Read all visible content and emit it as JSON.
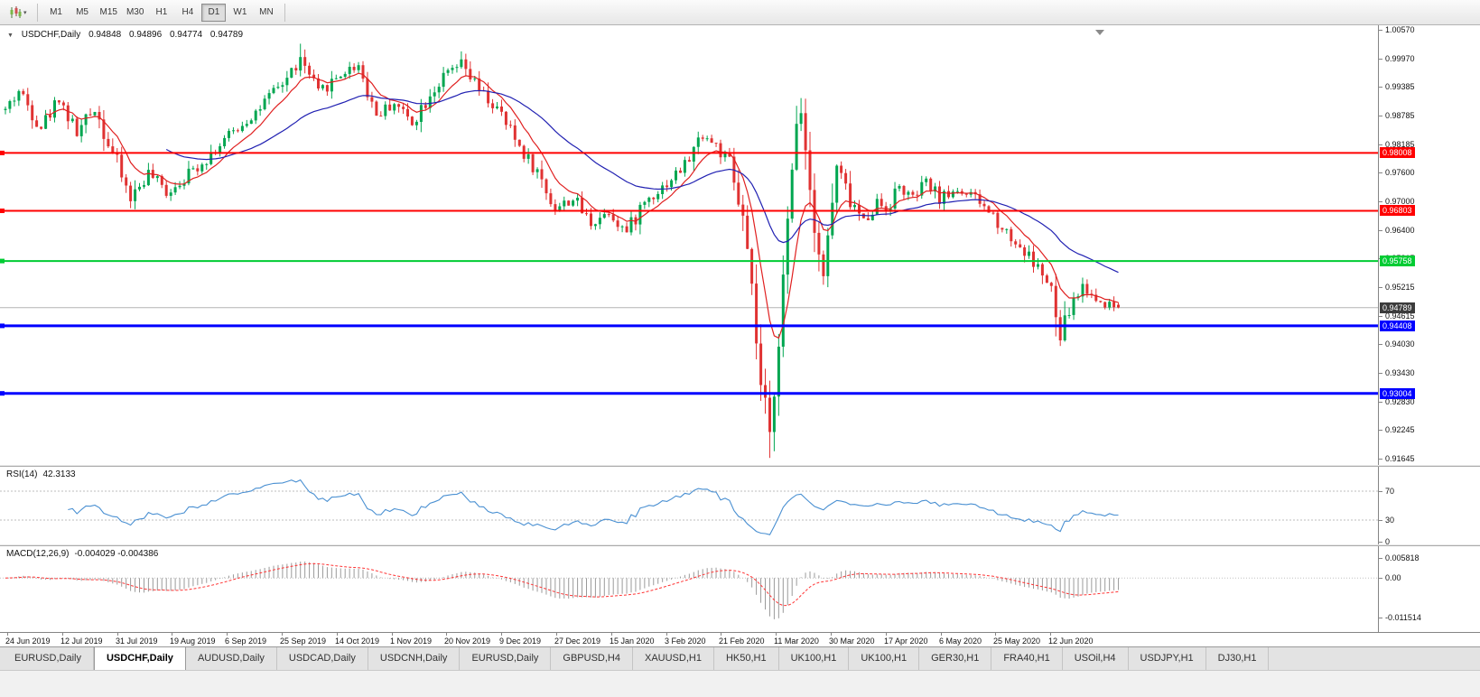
{
  "icons": {
    "collapse_arrow": "▼",
    "dropdown_caret": "▾"
  },
  "toolbar": {
    "timeframes": [
      "M1",
      "M5",
      "M15",
      "M30",
      "H1",
      "H4",
      "D1",
      "W1",
      "MN"
    ],
    "active_timeframe": "D1"
  },
  "chart": {
    "title": "USDCHF,Daily",
    "ohlc": {
      "open": "0.94848",
      "high": "0.94896",
      "low": "0.94774",
      "close": "0.94789"
    }
  },
  "chart_data": {
    "type": "candlestick",
    "symbol": "USDCHF",
    "timeframe": "Daily",
    "num_bars": 250,
    "ylim": [
      0.91645,
      1.0057
    ],
    "price_ticks": [
      "1.00570",
      "0.99970",
      "0.99385",
      "0.98785",
      "0.98185",
      "0.97600",
      "0.97000",
      "0.96400",
      "0.95815",
      "0.95215",
      "0.94615",
      "0.94030",
      "0.93430",
      "0.92830",
      "0.92245",
      "0.91645"
    ],
    "x_labels": [
      "24 Jun 2019",
      "12 Jul 2019",
      "31 Jul 2019",
      "19 Aug 2019",
      "6 Sep 2019",
      "25 Sep 2019",
      "14 Oct 2019",
      "1 Nov 2019",
      "20 Nov 2019",
      "9 Dec 2019",
      "27 Dec 2019",
      "15 Jan 2020",
      "3 Feb 2020",
      "21 Feb 2020",
      "11 Mar 2020",
      "30 Mar 2020",
      "17 Apr 2020",
      "6 May 2020",
      "25 May 2020",
      "12 Jun 2020"
    ],
    "close_path_anchors": [
      [
        0,
        0.989
      ],
      [
        3,
        0.993
      ],
      [
        8,
        0.9855
      ],
      [
        12,
        0.9915
      ],
      [
        16,
        0.984
      ],
      [
        20,
        0.9895
      ],
      [
        24,
        0.98
      ],
      [
        28,
        0.9705
      ],
      [
        32,
        0.976
      ],
      [
        36,
        0.9718
      ],
      [
        40,
        0.975
      ],
      [
        45,
        0.979
      ],
      [
        51,
        0.9845
      ],
      [
        57,
        0.9895
      ],
      [
        62,
        0.9945
      ],
      [
        66,
        0.9995
      ],
      [
        70,
        0.9925
      ],
      [
        75,
        0.9965
      ],
      [
        79,
        0.9985
      ],
      [
        83,
        0.988
      ],
      [
        87,
        0.9905
      ],
      [
        91,
        0.9865
      ],
      [
        95,
        0.9925
      ],
      [
        99,
        0.9965
      ],
      [
        102,
        0.9985
      ],
      [
        106,
        0.993
      ],
      [
        110,
        0.989
      ],
      [
        115,
        0.9815
      ],
      [
        119,
        0.976
      ],
      [
        123,
        0.9685
      ],
      [
        127,
        0.9705
      ],
      [
        131,
        0.9655
      ],
      [
        135,
        0.968
      ],
      [
        139,
        0.9635
      ],
      [
        143,
        0.97
      ],
      [
        147,
        0.973
      ],
      [
        152,
        0.9775
      ],
      [
        156,
        0.984
      ],
      [
        159,
        0.9815
      ],
      [
        162,
        0.9775
      ],
      [
        165,
        0.9655
      ],
      [
        167,
        0.95
      ],
      [
        169,
        0.931
      ],
      [
        171,
        0.9205
      ],
      [
        173,
        0.943
      ],
      [
        175,
        0.964
      ],
      [
        177,
        0.987
      ],
      [
        178,
        0.99
      ],
      [
        180,
        0.973
      ],
      [
        183,
        0.9545
      ],
      [
        186,
        0.977
      ],
      [
        189,
        0.97
      ],
      [
        192,
        0.966
      ],
      [
        195,
        0.97
      ],
      [
        197,
        0.9685
      ],
      [
        200,
        0.973
      ],
      [
        203,
        0.9705
      ],
      [
        206,
        0.974
      ],
      [
        209,
        0.9705
      ],
      [
        213,
        0.9725
      ],
      [
        217,
        0.9705
      ],
      [
        221,
        0.967
      ],
      [
        225,
        0.9625
      ],
      [
        229,
        0.9585
      ],
      [
        232,
        0.955
      ],
      [
        234,
        0.9505
      ],
      [
        236,
        0.941
      ],
      [
        238,
        0.9475
      ],
      [
        241,
        0.9525
      ],
      [
        244,
        0.9495
      ],
      [
        249,
        0.94789
      ]
    ],
    "extremes": {
      "crash_low": 0.9166,
      "rebound_high": 0.9915,
      "sep_high": 1.0028,
      "nov_high": 1.0012
    },
    "horizontal_lines": [
      {
        "value": 0.98008,
        "label": "0.98008",
        "color": "#ff0000",
        "width": 2
      },
      {
        "value": 0.96803,
        "label": "0.96803",
        "color": "#ff0000",
        "width": 2
      },
      {
        "value": 0.95758,
        "label": "0.95758",
        "color": "#00cc33",
        "width": 2
      },
      {
        "value": 0.94408,
        "label": "0.94408",
        "color": "#0000ff",
        "width": 3
      },
      {
        "value": 0.93004,
        "label": "0.93004",
        "color": "#0000ff",
        "width": 3
      }
    ],
    "current_price": {
      "value": 0.94789,
      "label": "0.94789",
      "line_color": "#b4b4b4",
      "badge_color": "#3c3c3c"
    },
    "moving_averages": [
      {
        "name": "fast-ma",
        "period": 9,
        "color": "#e02020"
      },
      {
        "name": "slow-ma",
        "period": 36,
        "color": "#2121b2"
      }
    ],
    "candle_up_color": "#00a650",
    "candle_down_color": "#e03232",
    "indicators": [
      {
        "name": "RSI",
        "label": "RSI(14)",
        "value": "42.3133",
        "line_color": "#4a90d2",
        "levels": [
          70,
          30
        ],
        "axis_ticks": [
          {
            "value": 70,
            "label": "70"
          },
          {
            "value": 30,
            "label": "30"
          },
          {
            "value": 0,
            "label": "0"
          }
        ],
        "range": [
          0,
          100
        ]
      },
      {
        "name": "MACD",
        "label": "MACD(12,26,9)",
        "value": "-0.004029 -0.004386",
        "histogram_color": "#9a9a9a",
        "signal_color": "#ff3333",
        "axis_ticks": [
          {
            "value": 0.005818,
            "label": "0.005818"
          },
          {
            "value": 0,
            "label": "0.00"
          },
          {
            "value": -0.011514,
            "label": "-0.011514"
          }
        ]
      }
    ]
  },
  "tabs": {
    "active_index": 1,
    "items": [
      "EURUSD,Daily",
      "USDCHF,Daily",
      "AUDUSD,Daily",
      "USDCAD,Daily",
      "USDCNH,Daily",
      "EURUSD,Daily",
      "GBPUSD,H4",
      "XAUUSD,H1",
      "HK50,H1",
      "UK100,H1",
      "UK100,H1",
      "GER30,H1",
      "FRA40,H1",
      "USOil,H4",
      "USDJPY,H1",
      "DJ30,H1"
    ]
  }
}
